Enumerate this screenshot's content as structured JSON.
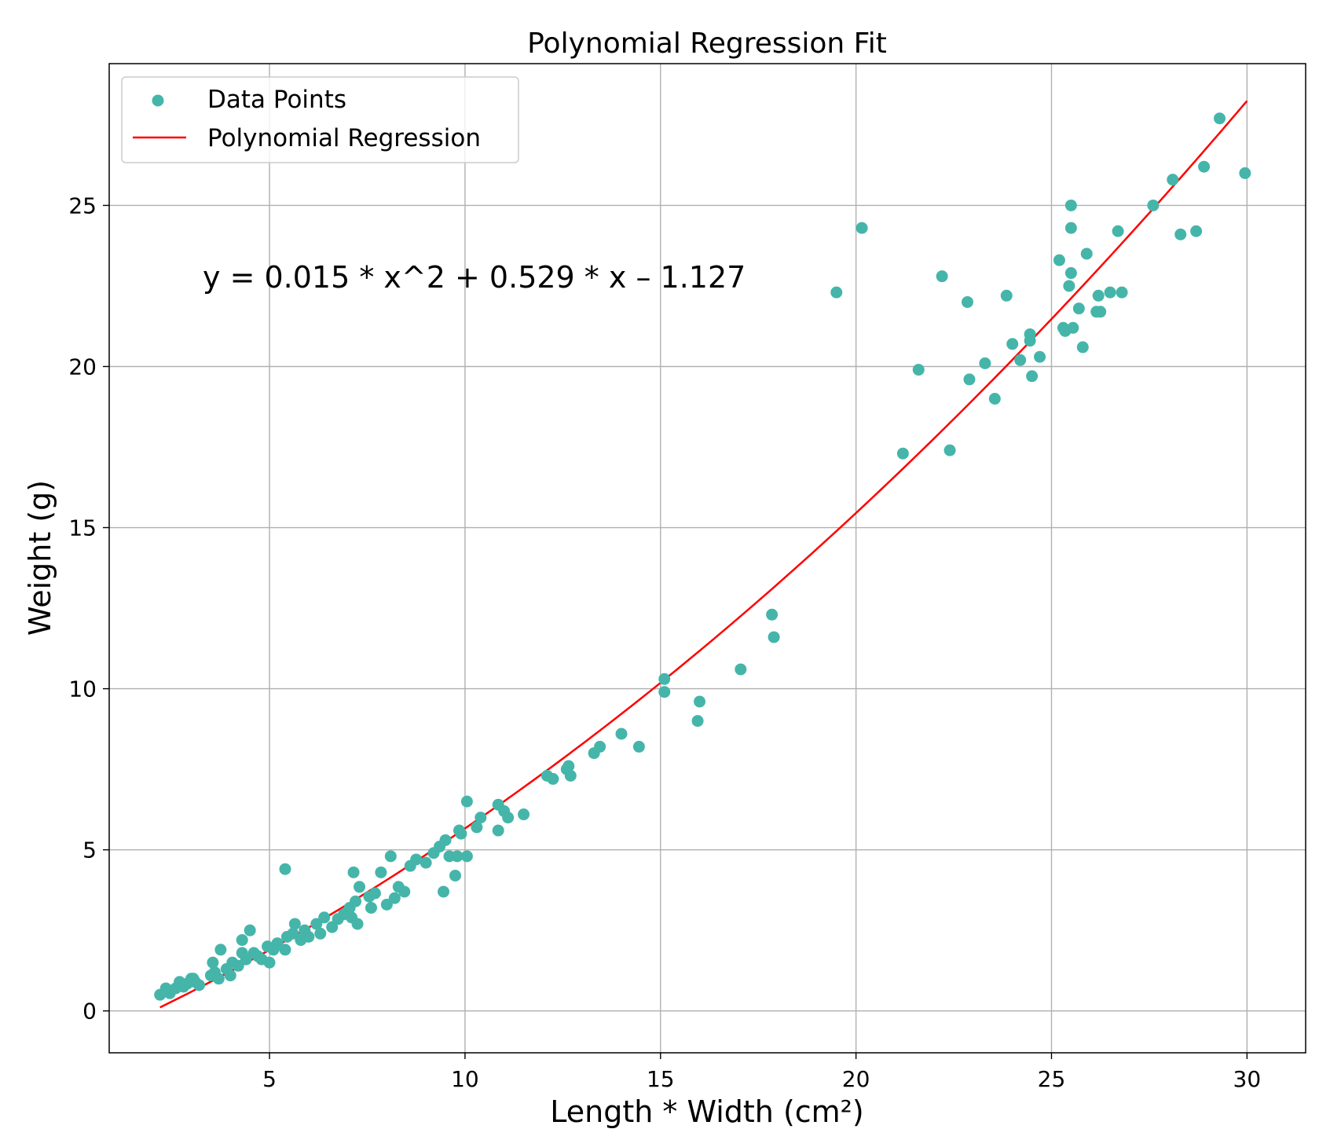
{
  "chart_data": {
    "type": "scatter",
    "title": "Polynomial Regression Fit",
    "xlabel": "Length * Width (cm²)",
    "ylabel": "Weight (g)",
    "xlim": [
      0.9,
      31.5
    ],
    "ylim": [
      -1.3,
      29.4
    ],
    "xticks": [
      5,
      10,
      15,
      20,
      25,
      30
    ],
    "yticks": [
      0,
      5,
      10,
      15,
      20,
      25
    ],
    "grid": true,
    "legend_position": "top-left",
    "annotation": "y = 0.015 * x^2 + 0.529 * x – 1.127",
    "series": [
      {
        "name": "Data Points",
        "kind": "scatter",
        "color": "#45b5aa",
        "points": [
          [
            2.2,
            0.5
          ],
          [
            2.35,
            0.7
          ],
          [
            2.45,
            0.55
          ],
          [
            2.6,
            0.7
          ],
          [
            2.7,
            0.9
          ],
          [
            2.8,
            0.75
          ],
          [
            2.9,
            0.85
          ],
          [
            3.0,
            1.0
          ],
          [
            3.1,
            0.9
          ],
          [
            3.2,
            0.8
          ],
          [
            3.05,
            1.0
          ],
          [
            3.5,
            1.1
          ],
          [
            3.55,
            1.5
          ],
          [
            3.6,
            1.2
          ],
          [
            3.7,
            1.0
          ],
          [
            3.75,
            1.9
          ],
          [
            3.9,
            1.3
          ],
          [
            4.0,
            1.1
          ],
          [
            4.05,
            1.5
          ],
          [
            4.2,
            1.4
          ],
          [
            4.3,
            1.8
          ],
          [
            4.3,
            2.2
          ],
          [
            4.4,
            1.6
          ],
          [
            4.5,
            2.5
          ],
          [
            4.6,
            1.8
          ],
          [
            4.7,
            1.7
          ],
          [
            4.8,
            1.6
          ],
          [
            4.95,
            2.0
          ],
          [
            5.0,
            1.5
          ],
          [
            5.1,
            1.9
          ],
          [
            5.2,
            2.1
          ],
          [
            5.4,
            1.9
          ],
          [
            5.45,
            2.3
          ],
          [
            5.4,
            4.4
          ],
          [
            5.6,
            2.4
          ],
          [
            5.65,
            2.7
          ],
          [
            5.8,
            2.2
          ],
          [
            5.9,
            2.5
          ],
          [
            6.0,
            2.3
          ],
          [
            6.2,
            2.7
          ],
          [
            6.3,
            2.4
          ],
          [
            6.4,
            2.9
          ],
          [
            6.6,
            2.6
          ],
          [
            6.75,
            2.85
          ],
          [
            6.9,
            3.0
          ],
          [
            7.05,
            3.2
          ],
          [
            7.1,
            2.9
          ],
          [
            7.15,
            4.3
          ],
          [
            7.2,
            3.4
          ],
          [
            7.25,
            2.7
          ],
          [
            7.3,
            3.85
          ],
          [
            7.55,
            3.55
          ],
          [
            7.6,
            3.2
          ],
          [
            7.7,
            3.65
          ],
          [
            7.85,
            4.3
          ],
          [
            8.0,
            3.3
          ],
          [
            8.1,
            4.8
          ],
          [
            8.2,
            3.5
          ],
          [
            8.3,
            3.85
          ],
          [
            8.45,
            3.7
          ],
          [
            8.6,
            4.5
          ],
          [
            8.75,
            4.7
          ],
          [
            9.0,
            4.6
          ],
          [
            9.2,
            4.9
          ],
          [
            9.35,
            5.1
          ],
          [
            9.45,
            3.7
          ],
          [
            9.5,
            5.3
          ],
          [
            9.6,
            4.8
          ],
          [
            9.75,
            4.2
          ],
          [
            9.8,
            4.8
          ],
          [
            9.85,
            5.6
          ],
          [
            9.9,
            5.5
          ],
          [
            10.05,
            6.5
          ],
          [
            10.05,
            4.8
          ],
          [
            10.3,
            5.7
          ],
          [
            10.4,
            6.0
          ],
          [
            10.85,
            6.4
          ],
          [
            10.85,
            5.6
          ],
          [
            11.0,
            6.2
          ],
          [
            11.1,
            6.0
          ],
          [
            11.5,
            6.1
          ],
          [
            12.1,
            7.3
          ],
          [
            12.25,
            7.2
          ],
          [
            12.6,
            7.5
          ],
          [
            12.65,
            7.6
          ],
          [
            12.7,
            7.3
          ],
          [
            13.3,
            8.0
          ],
          [
            13.45,
            8.2
          ],
          [
            14.0,
            8.6
          ],
          [
            14.45,
            8.2
          ],
          [
            15.1,
            9.9
          ],
          [
            15.1,
            10.3
          ],
          [
            15.95,
            9.0
          ],
          [
            16.0,
            9.6
          ],
          [
            17.05,
            10.6
          ],
          [
            17.85,
            12.3
          ],
          [
            17.9,
            11.6
          ],
          [
            19.5,
            22.3
          ],
          [
            20.15,
            24.3
          ],
          [
            21.2,
            17.3
          ],
          [
            21.6,
            19.9
          ],
          [
            22.2,
            22.8
          ],
          [
            22.4,
            17.4
          ],
          [
            22.85,
            22.0
          ],
          [
            22.9,
            19.6
          ],
          [
            23.3,
            20.1
          ],
          [
            23.55,
            19.0
          ],
          [
            23.85,
            22.2
          ],
          [
            24.0,
            20.7
          ],
          [
            24.2,
            20.2
          ],
          [
            24.45,
            20.8
          ],
          [
            24.45,
            21.0
          ],
          [
            24.5,
            19.7
          ],
          [
            24.7,
            20.3
          ],
          [
            25.2,
            23.3
          ],
          [
            25.3,
            21.2
          ],
          [
            25.35,
            21.1
          ],
          [
            25.45,
            22.5
          ],
          [
            25.5,
            22.9
          ],
          [
            25.5,
            24.3
          ],
          [
            25.5,
            25.0
          ],
          [
            25.55,
            21.2
          ],
          [
            25.7,
            21.8
          ],
          [
            25.8,
            20.6
          ],
          [
            25.9,
            23.5
          ],
          [
            26.15,
            21.7
          ],
          [
            26.2,
            22.2
          ],
          [
            26.25,
            21.7
          ],
          [
            26.5,
            22.3
          ],
          [
            26.7,
            24.2
          ],
          [
            26.8,
            22.3
          ],
          [
            27.6,
            25.0
          ],
          [
            28.1,
            25.8
          ],
          [
            28.3,
            24.1
          ],
          [
            28.7,
            24.2
          ],
          [
            28.9,
            26.2
          ],
          [
            29.3,
            27.7
          ],
          [
            29.95,
            26.0
          ]
        ]
      },
      {
        "name": "Polynomial Regression",
        "kind": "line",
        "color": "#ff0000",
        "x_range": [
          2.2,
          30
        ],
        "coefficients": {
          "a": 0.015,
          "b": 0.529,
          "c": -1.127
        }
      }
    ]
  }
}
